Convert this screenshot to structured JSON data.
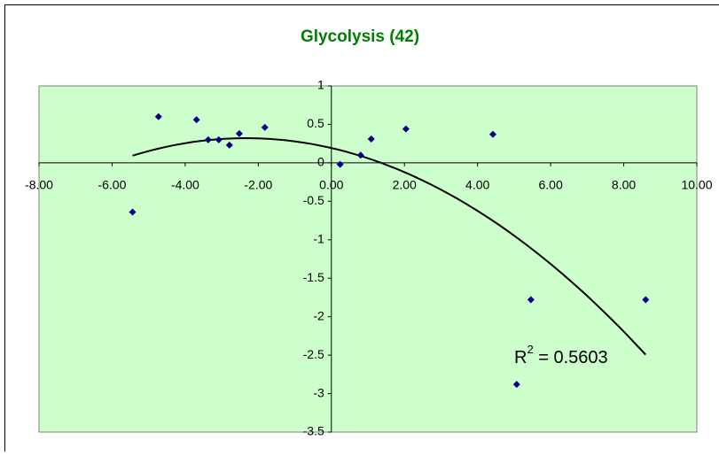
{
  "chart_data": {
    "type": "scatter",
    "title": "Glycolysis (42)",
    "series": [
      {
        "name": null,
        "color": "#000080",
        "x": [
          -5.44,
          -4.73,
          -3.69,
          -3.37,
          -3.08,
          -2.79,
          -2.52,
          -1.82,
          0.24,
          0.8,
          1.09,
          2.04,
          4.42,
          5.07,
          5.46,
          8.6
        ],
        "values": [
          -0.64,
          0.6,
          0.56,
          0.3,
          0.3,
          0.23,
          0.38,
          0.46,
          -0.02,
          0.1,
          0.31,
          0.44,
          0.37,
          -2.88,
          -1.78,
          -1.78
        ]
      }
    ],
    "trendline": {
      "type": "polynomial",
      "order": 2,
      "color": "#000000"
    },
    "annotation": {
      "base": "R",
      "sup": "2",
      "rest": " = 0.5603"
    },
    "xlim": [
      -8,
      10
    ],
    "xticks": [
      {
        "value": -8,
        "label": "-8.00"
      },
      {
        "value": -6,
        "label": "-6.00"
      },
      {
        "value": -4,
        "label": "-4.00"
      },
      {
        "value": -2,
        "label": "-2.00"
      },
      {
        "value": 0,
        "label": "0.00"
      },
      {
        "value": 2,
        "label": "2.00"
      },
      {
        "value": 4,
        "label": "4.00"
      },
      {
        "value": 6,
        "label": "6.00"
      },
      {
        "value": 8,
        "label": "8.00"
      },
      {
        "value": 10,
        "label": "10.00"
      }
    ],
    "ylim": [
      -3.5,
      1
    ],
    "yticks": [
      1,
      0.5,
      0,
      -0.5,
      -1,
      -1.5,
      -2,
      -2.5,
      -3,
      -3.5
    ],
    "plot_color": "#ccffcc",
    "grid": false
  }
}
